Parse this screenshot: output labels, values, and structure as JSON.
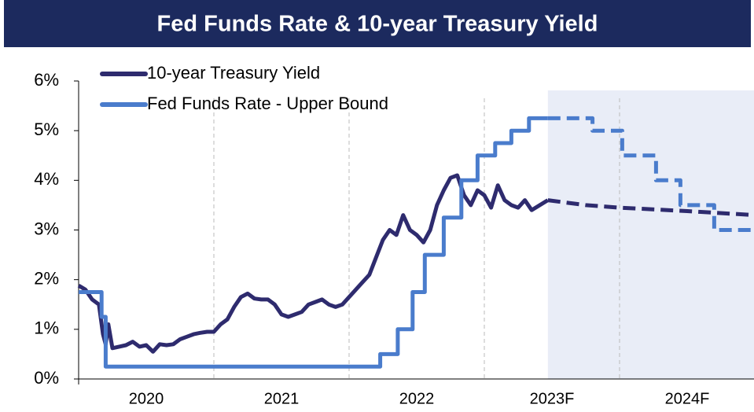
{
  "chart_data": {
    "type": "line",
    "title": "Fed Funds Rate & 10-year Treasury Yield",
    "xlim": [
      2020,
      2025
    ],
    "xticks": [
      {
        "value": 2020.5,
        "label": "2020"
      },
      {
        "value": 2021.5,
        "label": "2021"
      },
      {
        "value": 2022.5,
        "label": "2022"
      },
      {
        "value": 2023.5,
        "label": "2023F"
      },
      {
        "value": 2024.5,
        "label": "2024F"
      }
    ],
    "x_gridlines": [
      2021,
      2022,
      2023,
      2024
    ],
    "ylim": [
      0,
      6
    ],
    "yticks": [
      {
        "value": 0,
        "label": "0%"
      },
      {
        "value": 1,
        "label": "1%"
      },
      {
        "value": 2,
        "label": "2%"
      },
      {
        "value": 3,
        "label": "3%"
      },
      {
        "value": 4,
        "label": "4%"
      },
      {
        "value": 5,
        "label": "5%"
      },
      {
        "value": 6,
        "label": "6%"
      }
    ],
    "forecast_start": 2023.47,
    "legend": "top-left",
    "series": [
      {
        "name": "10-year Treasury Yield",
        "color": "#2e2b6e",
        "step": false,
        "x": [
          2020.0,
          2020.05,
          2020.1,
          2020.15,
          2020.18,
          2020.2,
          2020.22,
          2020.25,
          2020.3,
          2020.35,
          2020.4,
          2020.45,
          2020.5,
          2020.55,
          2020.6,
          2020.65,
          2020.7,
          2020.75,
          2020.8,
          2020.85,
          2020.9,
          2020.95,
          2021.0,
          2021.05,
          2021.1,
          2021.15,
          2021.2,
          2021.25,
          2021.3,
          2021.35,
          2021.4,
          2021.45,
          2021.5,
          2021.55,
          2021.6,
          2021.65,
          2021.7,
          2021.75,
          2021.8,
          2021.85,
          2021.9,
          2021.95,
          2022.0,
          2022.05,
          2022.1,
          2022.15,
          2022.2,
          2022.25,
          2022.3,
          2022.35,
          2022.4,
          2022.45,
          2022.5,
          2022.55,
          2022.6,
          2022.65,
          2022.7,
          2022.75,
          2022.8,
          2022.85,
          2022.9,
          2022.95,
          2023.0,
          2023.05,
          2023.1,
          2023.15,
          2023.2,
          2023.25,
          2023.3,
          2023.35,
          2023.47,
          2023.75,
          2024.0,
          2024.5,
          2025.0
        ],
        "values": [
          1.88,
          1.8,
          1.6,
          1.5,
          0.9,
          0.7,
          1.1,
          0.62,
          0.65,
          0.68,
          0.75,
          0.65,
          0.68,
          0.55,
          0.7,
          0.68,
          0.7,
          0.8,
          0.85,
          0.9,
          0.93,
          0.95,
          0.95,
          1.1,
          1.2,
          1.45,
          1.65,
          1.72,
          1.62,
          1.6,
          1.6,
          1.5,
          1.3,
          1.25,
          1.3,
          1.35,
          1.5,
          1.55,
          1.6,
          1.5,
          1.45,
          1.5,
          1.65,
          1.8,
          1.95,
          2.1,
          2.45,
          2.8,
          3.0,
          2.9,
          3.3,
          3.0,
          2.9,
          2.75,
          3.0,
          3.5,
          3.8,
          4.05,
          4.1,
          3.7,
          3.5,
          3.8,
          3.7,
          3.45,
          3.9,
          3.6,
          3.5,
          3.45,
          3.6,
          3.4,
          3.6,
          3.5,
          3.45,
          3.38,
          3.3
        ]
      },
      {
        "name": "Fed Funds Rate - Upper Bound",
        "color": "#4a7ccc",
        "step": true,
        "x": [
          2020.0,
          2020.17,
          2020.2,
          2022.23,
          2022.36,
          2022.47,
          2022.56,
          2022.7,
          2022.83,
          2022.95,
          2023.08,
          2023.2,
          2023.33,
          2023.8,
          2024.02,
          2024.27,
          2024.45,
          2024.7,
          2025.0
        ],
        "values": [
          1.75,
          1.25,
          0.25,
          0.5,
          1.0,
          1.75,
          2.5,
          3.25,
          4.0,
          4.5,
          4.75,
          5.0,
          5.25,
          5.0,
          4.5,
          4.0,
          3.5,
          3.0,
          3.0
        ]
      }
    ]
  }
}
